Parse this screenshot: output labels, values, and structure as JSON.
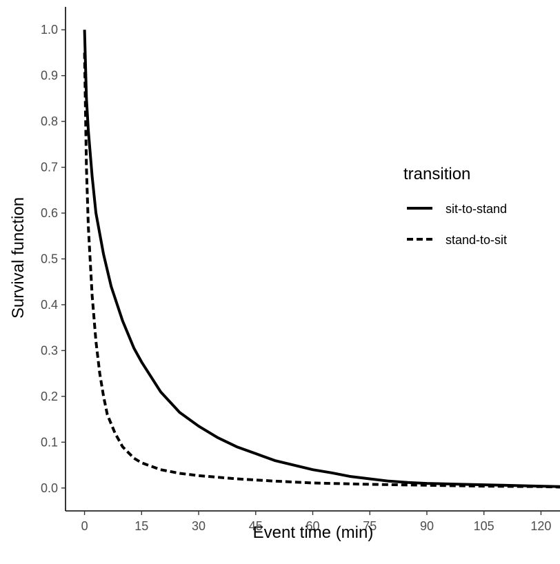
{
  "chart_data": {
    "type": "line",
    "xlabel": "Event time (min)",
    "ylabel": "Survival function",
    "xlim": [
      -5,
      125
    ],
    "ylim": [
      -0.05,
      1.05
    ],
    "xticks": [
      0,
      15,
      30,
      45,
      60,
      75,
      90,
      105,
      120
    ],
    "yticks": [
      0.0,
      0.1,
      0.2,
      0.3,
      0.4,
      0.5,
      0.6,
      0.7,
      0.8,
      0.9,
      1.0
    ],
    "xtick_labels": [
      "0",
      "15",
      "30",
      "45",
      "60",
      "75",
      "90",
      "105",
      "120"
    ],
    "ytick_labels": [
      "0.0",
      "0.1",
      "0.2",
      "0.3",
      "0.4",
      "0.5",
      "0.6",
      "0.7",
      "0.8",
      "0.9",
      "1.0"
    ],
    "grid": false,
    "legend": {
      "title": "transition",
      "position": "right"
    },
    "series": [
      {
        "name": "sit-to-stand",
        "style": "solid",
        "color": "#000000",
        "x": [
          0,
          0.5,
          1,
          2,
          3,
          5,
          7,
          10,
          13,
          15,
          20,
          25,
          30,
          35,
          40,
          45,
          50,
          55,
          60,
          65,
          70,
          75,
          80,
          85,
          90,
          100,
          110,
          120,
          125
        ],
        "y": [
          1.0,
          0.85,
          0.78,
          0.68,
          0.6,
          0.51,
          0.44,
          0.365,
          0.305,
          0.275,
          0.21,
          0.165,
          0.135,
          0.11,
          0.09,
          0.075,
          0.06,
          0.05,
          0.04,
          0.033,
          0.025,
          0.02,
          0.015,
          0.012,
          0.01,
          0.008,
          0.006,
          0.004,
          0.003
        ]
      },
      {
        "name": "stand-to-sit",
        "style": "dashed",
        "color": "#000000",
        "x": [
          0,
          0.5,
          1,
          2,
          3,
          4,
          5,
          6,
          8,
          10,
          13,
          15,
          20,
          25,
          30,
          40,
          50,
          60,
          75,
          90,
          105,
          120,
          125
        ],
        "y": [
          0.95,
          0.7,
          0.57,
          0.42,
          0.32,
          0.25,
          0.2,
          0.16,
          0.12,
          0.09,
          0.065,
          0.055,
          0.04,
          0.032,
          0.027,
          0.02,
          0.015,
          0.011,
          0.008,
          0.006,
          0.004,
          0.003,
          0.002
        ]
      }
    ]
  }
}
